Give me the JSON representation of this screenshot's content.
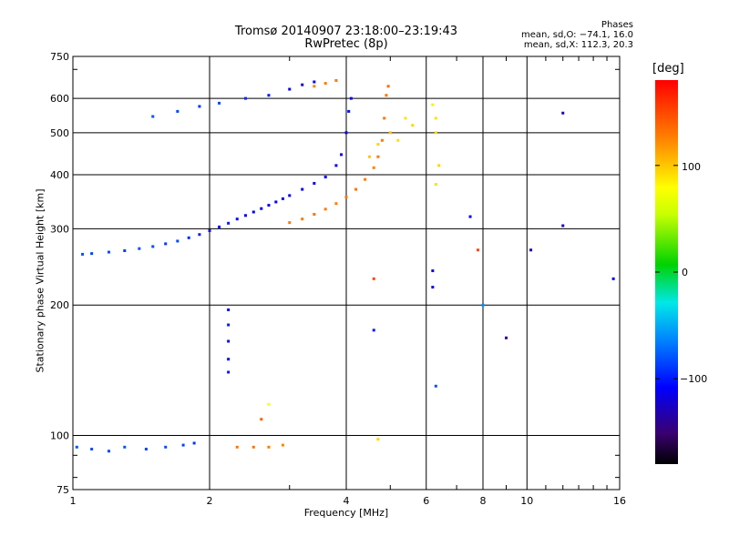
{
  "chart_data": {
    "type": "scatter",
    "title": "Tromsø 20140907 23:18:00–23:19:43",
    "subtitle": "RwPretec (8p)",
    "xlabel": "Frequency [MHz]",
    "ylabel": "Stationary phase Virtual Height [km]",
    "xscale": "log",
    "yscale": "log",
    "xlim": [
      1,
      16
    ],
    "ylim": [
      75,
      750
    ],
    "xticks": [
      1,
      2,
      4,
      6,
      8,
      10,
      16
    ],
    "yticks": [
      75,
      100,
      200,
      300,
      400,
      500,
      600,
      750
    ],
    "grid": true,
    "phase_info": {
      "heading": "Phases",
      "line1": "mean, sd,O: −74.1, 16.0",
      "line2": "mean, sd,X: 112.3, 20.3"
    },
    "colorbar": {
      "label": "[deg]",
      "range": [
        -180,
        180
      ],
      "ticks": [
        "100",
        "0",
        "−100"
      ],
      "tick_values": [
        100,
        0,
        -100
      ]
    },
    "series": [
      {
        "mode": "O",
        "mean_phase": -74.1,
        "points": [
          [
            1.05,
            262,
            -80
          ],
          [
            1.1,
            263,
            -85
          ],
          [
            1.2,
            265,
            -82
          ],
          [
            1.3,
            267,
            -88
          ],
          [
            1.4,
            270,
            -80
          ],
          [
            1.5,
            273,
            -82
          ],
          [
            1.6,
            277,
            -90
          ],
          [
            1.7,
            281,
            -85
          ],
          [
            1.8,
            286,
            -95
          ],
          [
            1.9,
            291,
            -98
          ],
          [
            2.0,
            297,
            -100
          ],
          [
            2.1,
            303,
            -105
          ],
          [
            2.2,
            309,
            -100
          ],
          [
            2.3,
            316,
            -105
          ],
          [
            2.4,
            322,
            -110
          ],
          [
            2.5,
            328,
            -112
          ],
          [
            2.6,
            334,
            -110
          ],
          [
            2.7,
            340,
            -115
          ],
          [
            2.8,
            346,
            -110
          ],
          [
            2.9,
            352,
            -112
          ],
          [
            3.0,
            358,
            -115
          ],
          [
            3.2,
            370,
            -110
          ],
          [
            3.4,
            382,
            -115
          ],
          [
            3.6,
            395,
            -112
          ],
          [
            3.8,
            420,
            -110
          ],
          [
            3.9,
            445,
            -115
          ],
          [
            4.0,
            500,
            -110
          ],
          [
            4.05,
            560,
            -105
          ],
          [
            4.1,
            600,
            -110
          ],
          [
            1.5,
            545,
            -80
          ],
          [
            1.7,
            560,
            -85
          ],
          [
            1.9,
            575,
            -90
          ],
          [
            2.1,
            585,
            -85
          ],
          [
            2.4,
            600,
            -95
          ],
          [
            2.7,
            610,
            -100
          ],
          [
            3.0,
            630,
            -115
          ],
          [
            3.2,
            645,
            -120
          ],
          [
            3.4,
            655,
            -110
          ],
          [
            1.02,
            94,
            -80
          ],
          [
            1.1,
            93,
            -82
          ],
          [
            1.2,
            92,
            -85
          ],
          [
            1.3,
            94,
            -80
          ],
          [
            1.45,
            93,
            -85
          ],
          [
            1.6,
            94,
            -82
          ],
          [
            1.75,
            95,
            -85
          ],
          [
            1.85,
            96,
            -90
          ],
          [
            2.2,
            195,
            -110
          ],
          [
            2.2,
            180,
            -100
          ],
          [
            2.2,
            165,
            -105
          ],
          [
            2.2,
            150,
            -110
          ],
          [
            2.2,
            140,
            -100
          ],
          [
            4.6,
            175,
            -100
          ],
          [
            6.2,
            240,
            -120
          ],
          [
            6.2,
            220,
            -115
          ],
          [
            6.3,
            130,
            -80
          ],
          [
            9.0,
            168,
            -140
          ],
          [
            12.0,
            555,
            -130
          ],
          [
            12.0,
            305,
            -125
          ],
          [
            15.5,
            230,
            -110
          ],
          [
            10.2,
            268,
            -130
          ],
          [
            7.5,
            320,
            -110
          ]
        ]
      },
      {
        "mode": "X",
        "mean_phase": 112.3,
        "points": [
          [
            3.0,
            310,
            130
          ],
          [
            3.2,
            316,
            130
          ],
          [
            3.4,
            324,
            132
          ],
          [
            3.6,
            333,
            130
          ],
          [
            3.8,
            343,
            128
          ],
          [
            4.0,
            355,
            130
          ],
          [
            4.2,
            370,
            132
          ],
          [
            4.4,
            390,
            130
          ],
          [
            4.6,
            415,
            125
          ],
          [
            4.7,
            440,
            130
          ],
          [
            4.8,
            480,
            128
          ],
          [
            4.85,
            540,
            130
          ],
          [
            4.9,
            610,
            132
          ],
          [
            4.95,
            640,
            135
          ],
          [
            4.5,
            440,
            100
          ],
          [
            4.7,
            470,
            95
          ],
          [
            5.0,
            500,
            100
          ],
          [
            5.2,
            480,
            90
          ],
          [
            5.4,
            540,
            90
          ],
          [
            5.6,
            520,
            95
          ],
          [
            6.2,
            580,
            85
          ],
          [
            6.3,
            540,
            90
          ],
          [
            6.3,
            500,
            92
          ],
          [
            6.4,
            420,
            95
          ],
          [
            6.3,
            380,
            90
          ],
          [
            3.4,
            640,
            125
          ],
          [
            3.6,
            650,
            128
          ],
          [
            3.8,
            660,
            130
          ],
          [
            2.3,
            94,
            130
          ],
          [
            2.5,
            94,
            132
          ],
          [
            2.7,
            94,
            128
          ],
          [
            2.9,
            95,
            125
          ],
          [
            2.7,
            118,
            80
          ],
          [
            2.6,
            109,
            140
          ],
          [
            4.6,
            230,
            150
          ],
          [
            4.7,
            98,
            95
          ],
          [
            7.8,
            268,
            150
          ],
          [
            8.0,
            200,
            -60
          ]
        ]
      }
    ]
  }
}
